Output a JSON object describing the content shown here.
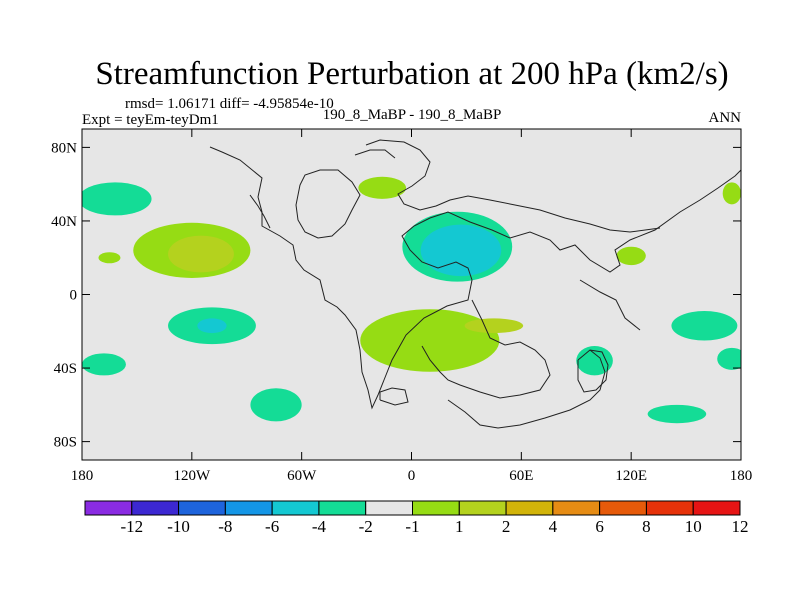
{
  "chart_data": {
    "type": "heatmap",
    "title": "Streamfunction Perturbation at 200 hPa (km2/s)",
    "stats_line": "rmsd= 1.06171 diff= -4.95854e-10",
    "left_label": "Expt = teyEm-teyDm1",
    "center_label": "190_8_MaBP - 190_8_MaBP",
    "right_label": "ANN",
    "x_axis": {
      "range": [
        -180,
        180
      ],
      "tick_values": [
        -180,
        -120,
        -60,
        0,
        60,
        120,
        180
      ],
      "tick_labels": [
        "180",
        "120W",
        "60W",
        "0",
        "60E",
        "120E",
        "180"
      ]
    },
    "y_axis": {
      "range": [
        -90,
        90
      ],
      "tick_values": [
        80,
        40,
        0,
        -40,
        -80
      ],
      "tick_labels": [
        "80N",
        "40N",
        "0",
        "40S",
        "80S"
      ]
    },
    "background_color": "#e6e6e6",
    "colorbar": {
      "levels": [
        "-12",
        "-10",
        "-8",
        "-6",
        "-4",
        "-2",
        "-1",
        "1",
        "2",
        "4",
        "6",
        "8",
        "10",
        "12"
      ],
      "colors": [
        "#8a2be2",
        "#3c28d2",
        "#1e64dc",
        "#1496e6",
        "#14c8d2",
        "#14dc96",
        "#e6e6e6",
        "#96dc14",
        "#b4d21e",
        "#d2b40a",
        "#e68c14",
        "#e65a0a",
        "#e6320a",
        "#e61414"
      ]
    },
    "regions": [
      {
        "name": "north-pacific-positive",
        "lon": -120,
        "lat": 24,
        "rlon": 32,
        "rlat": 15,
        "color": "#96dc14"
      },
      {
        "name": "north-pacific-core",
        "lon": -115,
        "lat": 22,
        "rlon": 18,
        "rlat": 10,
        "color": "#b4d21e"
      },
      {
        "name": "hawaii-small-positive",
        "lon": -165,
        "lat": 20,
        "rlon": 6,
        "rlat": 3,
        "color": "#96dc14"
      },
      {
        "name": "north-pacific-high-lat-negative",
        "lon": -162,
        "lat": 52,
        "rlon": 20,
        "rlat": 9,
        "color": "#14dc96"
      },
      {
        "name": "north-atlantic-positive",
        "lon": -16,
        "lat": 58,
        "rlon": 13,
        "rlat": 6,
        "color": "#96dc14"
      },
      {
        "name": "eurasia-negative-outer",
        "lon": 25,
        "lat": 26,
        "rlon": 30,
        "rlat": 19,
        "color": "#14dc96"
      },
      {
        "name": "eurasia-negative-middle",
        "lon": 27,
        "lat": 24,
        "rlon": 22,
        "rlat": 14,
        "color": "#14c8d2"
      },
      {
        "name": "asia-small-positive",
        "lon": 120,
        "lat": 21,
        "rlon": 8,
        "rlat": 5,
        "color": "#96dc14"
      },
      {
        "name": "east-atlantic-north-positive",
        "lon": 175,
        "lat": 55,
        "rlon": 5,
        "rlat": 6,
        "color": "#96dc14"
      },
      {
        "name": "south-pacific-negative",
        "lon": -109,
        "lat": -17,
        "rlon": 24,
        "rlat": 10,
        "color": "#14dc96"
      },
      {
        "name": "south-pacific-core",
        "lon": -109,
        "lat": -17,
        "rlon": 8,
        "rlat": 4,
        "color": "#14c8d2"
      },
      {
        "name": "south-atlantic-positive",
        "lon": 10,
        "lat": -25,
        "rlon": 38,
        "rlat": 17,
        "color": "#96dc14"
      },
      {
        "name": "south-atlantic-core",
        "lon": 45,
        "lat": -17,
        "rlon": 16,
        "rlat": 4,
        "color": "#b4d21e"
      },
      {
        "name": "indian-ocean-south-negative",
        "lon": 100,
        "lat": -36,
        "rlon": 10,
        "rlat": 8,
        "color": "#14dc96"
      },
      {
        "name": "far-east-south-negative",
        "lon": 160,
        "lat": -17,
        "rlon": 18,
        "rlat": 8,
        "color": "#14dc96"
      },
      {
        "name": "far-east-south-lower-negative",
        "lon": 175,
        "lat": -35,
        "rlon": 8,
        "rlat": 6,
        "color": "#14dc96"
      },
      {
        "name": "west-pacific-south-negative",
        "lon": -168,
        "lat": -38,
        "rlon": 12,
        "rlat": 6,
        "color": "#14dc96"
      },
      {
        "name": "southern-ocean-negative",
        "lon": -74,
        "lat": -60,
        "rlon": 14,
        "rlat": 9,
        "color": "#14dc96"
      },
      {
        "name": "southern-indian-negative",
        "lon": 145,
        "lat": -65,
        "rlon": 16,
        "rlat": 5,
        "color": "#14dc96"
      }
    ]
  }
}
